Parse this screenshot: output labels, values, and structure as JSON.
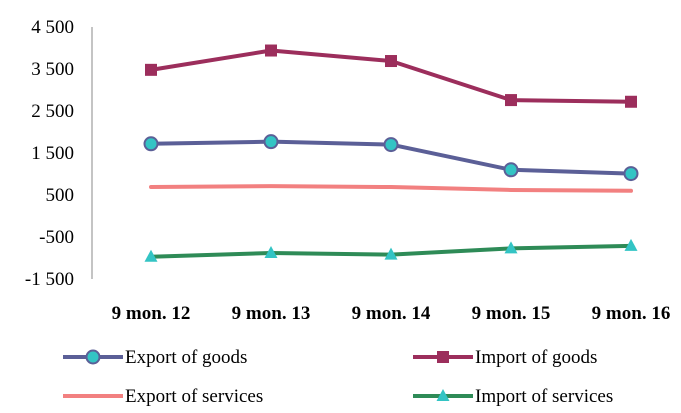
{
  "chart_data": {
    "type": "line",
    "title": "",
    "xlabel": "",
    "ylabel": "",
    "categories": [
      "9 mon. 12",
      "9 mon. 13",
      "9 mon. 14",
      "9 mon. 15",
      "9 mon. 16"
    ],
    "ylim": [
      -1500,
      4500
    ],
    "yticks": [
      -1500,
      -500,
      500,
      1500,
      2500,
      3500,
      4500
    ],
    "ytick_labels": [
      "-1 500",
      "-500",
      "500",
      "1 500",
      "2 500",
      "3 500",
      "4 500"
    ],
    "grid": false,
    "legend_position": "bottom",
    "series": [
      {
        "name": "Export of goods",
        "values": [
          1720,
          1770,
          1700,
          1100,
          1010
        ],
        "color": "#5B5F97",
        "marker": "circle",
        "marker_fill": "#33C4C4"
      },
      {
        "name": "Import of goods",
        "values": [
          3480,
          3940,
          3690,
          2760,
          2720
        ],
        "color": "#9C2E5C",
        "marker": "square",
        "marker_fill": "#9C2E5C"
      },
      {
        "name": "Export of services",
        "values": [
          690,
          710,
          690,
          620,
          600
        ],
        "color": "#F28080",
        "marker": "none"
      },
      {
        "name": "Import of services",
        "values": [
          -970,
          -880,
          -920,
          -770,
          -710
        ],
        "color": "#2E8B57",
        "marker": "triangle",
        "marker_fill": "#33C4C4"
      }
    ]
  }
}
